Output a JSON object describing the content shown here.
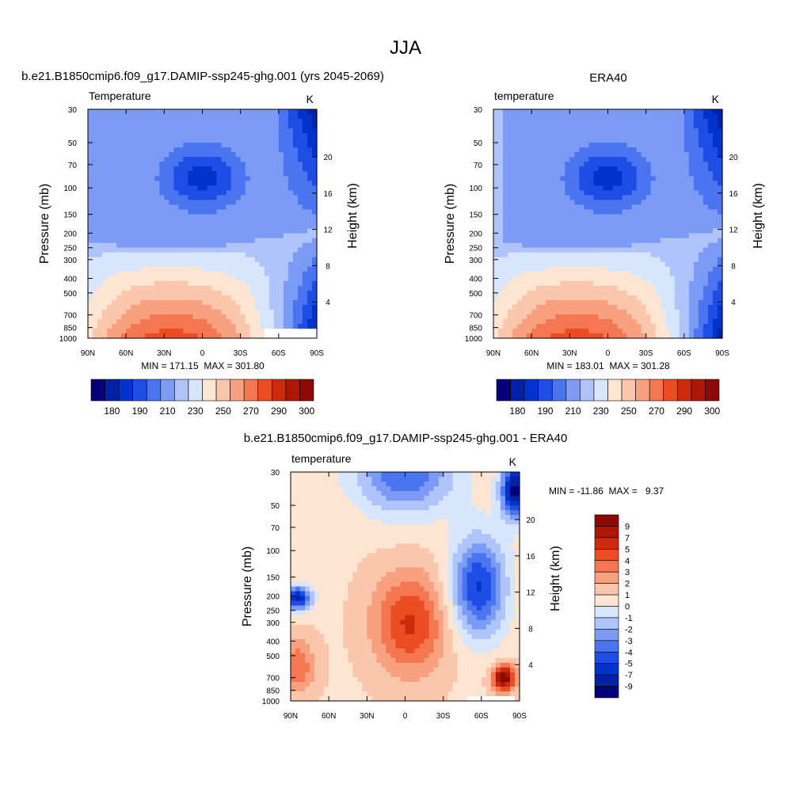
{
  "figure": {
    "title": "JJA"
  },
  "chart_data": [
    {
      "type": "heatmap",
      "heading": "b.e21.B1850cmip6.f09_g17.DAMIP-ssp245-ghg.001 (yrs 2045-2069)",
      "title": "Temperature",
      "units": "K",
      "ylabel": "Pressure (mb)",
      "ylabel_right": "Height (km)",
      "x_ticks": [
        "90N",
        "60N",
        "30N",
        "0",
        "30S",
        "60S",
        "90S"
      ],
      "y_ticks": [
        "30",
        "50",
        "70",
        "100",
        "150",
        "200",
        "250",
        "300",
        "400",
        "500",
        "700",
        "850",
        "1000"
      ],
      "y_right_ticks": [
        "4",
        "8",
        "12",
        "16",
        "20"
      ],
      "min_max": "MIN = 171.15  MAX = 301.80",
      "min": 171.15,
      "max": 301.8,
      "colorbar_labels": [
        "180",
        "190",
        "210",
        "230",
        "250",
        "270",
        "290",
        "300"
      ],
      "colorbar_colors": [
        "#04007a",
        "#0022a6",
        "#0033cc",
        "#1e4de6",
        "#4a74f0",
        "#7b9bf5",
        "#aec4fa",
        "#d7e6fd",
        "#fde5d2",
        "#fbc7ac",
        "#f8a07f",
        "#f37751",
        "#ed4d22",
        "#cf2a0c",
        "#ad1706",
        "#8e0807"
      ]
    },
    {
      "type": "heatmap",
      "heading": "ERA40",
      "title": "temperature",
      "units": "K",
      "ylabel": "Pressure (mb)",
      "ylabel_right": "Height (km)",
      "x_ticks": [
        "90N",
        "60N",
        "30N",
        "0",
        "30S",
        "60S",
        "90S"
      ],
      "y_ticks": [
        "30",
        "50",
        "70",
        "100",
        "150",
        "200",
        "250",
        "300",
        "400",
        "500",
        "700",
        "850",
        "1000"
      ],
      "y_right_ticks": [
        "4",
        "8",
        "12",
        "16",
        "20"
      ],
      "min_max": "MIN = 183.01  MAX = 301.28",
      "min": 183.01,
      "max": 301.28,
      "colorbar_labels": [
        "180",
        "190",
        "210",
        "230",
        "250",
        "270",
        "290",
        "300"
      ],
      "colorbar_colors": [
        "#04007a",
        "#0022a6",
        "#0033cc",
        "#1e4de6",
        "#4a74f0",
        "#7b9bf5",
        "#aec4fa",
        "#d7e6fd",
        "#fde5d2",
        "#fbc7ac",
        "#f8a07f",
        "#f37751",
        "#ed4d22",
        "#cf2a0c",
        "#ad1706",
        "#8e0807"
      ]
    },
    {
      "type": "heatmap",
      "heading": "b.e21.B1850cmip6.f09_g17.DAMIP-ssp245-ghg.001 - ERA40",
      "title": "temperature",
      "units": "K",
      "ylabel": "Pressure (mb)",
      "ylabel_right": "Height (km)",
      "x_ticks": [
        "90N",
        "60N",
        "30N",
        "0",
        "30S",
        "60S",
        "90S"
      ],
      "y_ticks": [
        "30",
        "50",
        "70",
        "100",
        "150",
        "200",
        "250",
        "300",
        "400",
        "500",
        "700",
        "850",
        "1000"
      ],
      "y_right_ticks": [
        "4",
        "8",
        "12",
        "16",
        "20"
      ],
      "min_max": "MIN = -11.86  MAX =   9.37",
      "min": -11.86,
      "max": 9.37,
      "colorbar_labels": [
        "9",
        "7",
        "5",
        "4",
        "3",
        "2",
        "1",
        "0",
        "-1",
        "-2",
        "-3",
        "-4",
        "-5",
        "-7",
        "-9"
      ],
      "colorbar_colors": [
        "#8e0807",
        "#ad1706",
        "#cf2a0c",
        "#ed4d22",
        "#f37751",
        "#f8a07f",
        "#fbc7ac",
        "#fde5d2",
        "#d7e6fd",
        "#aec4fa",
        "#7b9bf5",
        "#4a74f0",
        "#1e4de6",
        "#0033cc",
        "#0022a6",
        "#04007a"
      ]
    }
  ]
}
